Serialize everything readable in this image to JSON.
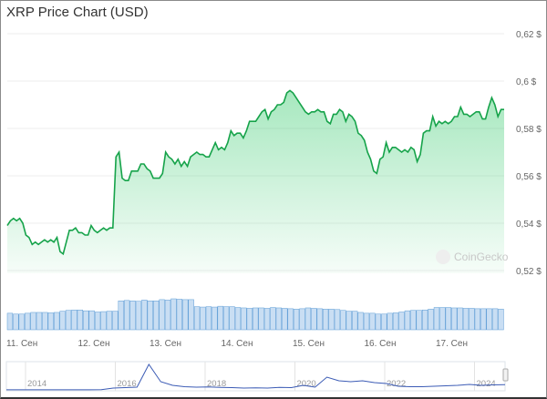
{
  "chart_data": {
    "type": "line",
    "title": "XRP Price Chart (USD)",
    "xlabel": "",
    "ylabel": "",
    "ylim": [
      0.515,
      0.625
    ],
    "y_ticks": [
      "0,62 $",
      "0,6 $",
      "0,58 $",
      "0,56 $",
      "0,54 $",
      "0,52 $"
    ],
    "y_tick_values": [
      0.62,
      0.6,
      0.58,
      0.56,
      0.54,
      0.52
    ],
    "x_ticks": [
      "11. Сен",
      "12. Сен",
      "13. Сен",
      "14. Сен",
      "15. Сен",
      "16. Сен",
      "17. Сен"
    ],
    "grid": true,
    "line_color": "#16a34a",
    "fill_color": "#22c55e",
    "watermark": "CoinGecko",
    "price": [
      0.539,
      0.541,
      0.542,
      0.541,
      0.542,
      0.54,
      0.535,
      0.534,
      0.531,
      0.532,
      0.531,
      0.532,
      0.533,
      0.532,
      0.533,
      0.532,
      0.534,
      0.528,
      0.527,
      0.532,
      0.537,
      0.537,
      0.538,
      0.536,
      0.536,
      0.535,
      0.535,
      0.539,
      0.537,
      0.536,
      0.537,
      0.538,
      0.537,
      0.538,
      0.538,
      0.568,
      0.57,
      0.559,
      0.558,
      0.558,
      0.562,
      0.562,
      0.562,
      0.565,
      0.565,
      0.563,
      0.562,
      0.559,
      0.559,
      0.559,
      0.561,
      0.57,
      0.568,
      0.567,
      0.565,
      0.567,
      0.564,
      0.566,
      0.564,
      0.568,
      0.569,
      0.57,
      0.569,
      0.569,
      0.568,
      0.568,
      0.571,
      0.574,
      0.571,
      0.572,
      0.571,
      0.574,
      0.579,
      0.577,
      0.578,
      0.578,
      0.576,
      0.579,
      0.583,
      0.583,
      0.583,
      0.585,
      0.587,
      0.588,
      0.584,
      0.587,
      0.588,
      0.59,
      0.59,
      0.591,
      0.595,
      0.596,
      0.595,
      0.593,
      0.591,
      0.589,
      0.587,
      0.586,
      0.587,
      0.587,
      0.588,
      0.587,
      0.587,
      0.583,
      0.582,
      0.586,
      0.586,
      0.588,
      0.587,
      0.583,
      0.586,
      0.585,
      0.583,
      0.578,
      0.577,
      0.575,
      0.57,
      0.567,
      0.562,
      0.561,
      0.567,
      0.568,
      0.574,
      0.57,
      0.572,
      0.572,
      0.571,
      0.57,
      0.571,
      0.57,
      0.572,
      0.571,
      0.566,
      0.569,
      0.578,
      0.579,
      0.579,
      0.585,
      0.581,
      0.583,
      0.582,
      0.583,
      0.582,
      0.583,
      0.585,
      0.585,
      0.589,
      0.586,
      0.586,
      0.585,
      0.586,
      0.587,
      0.587,
      0.584,
      0.584,
      0.589,
      0.593,
      0.59,
      0.585,
      0.588,
      0.588
    ],
    "volume_color": "#5b9bd5",
    "volume_relative": [
      40,
      38,
      38,
      40,
      42,
      42,
      42,
      41,
      42,
      45,
      47,
      48,
      48,
      46,
      46,
      43,
      44,
      45,
      45,
      70,
      71,
      70,
      69,
      72,
      70,
      70,
      73,
      72,
      75,
      74,
      73,
      73,
      56,
      55,
      56,
      55,
      57,
      56,
      56,
      54,
      53,
      52,
      53,
      53,
      52,
      54,
      53,
      52,
      51,
      50,
      51,
      53,
      52,
      51,
      50,
      50,
      49,
      47,
      45,
      45,
      42,
      40,
      40,
      38,
      38,
      40,
      41,
      43,
      46,
      47,
      47,
      48,
      50,
      54,
      54,
      54,
      53,
      53,
      52,
      52,
      51,
      51,
      51,
      51,
      50
    ],
    "navigator": {
      "x_ticks": [
        "2014",
        "2016",
        "2018",
        "2020",
        "2022",
        "2024"
      ],
      "line_color": "#3b5bb5",
      "values": [
        0.006,
        0.006,
        0.006,
        0.006,
        0.006,
        0.006,
        0.007,
        0.008,
        0.03,
        0.2,
        0.25,
        0.3,
        2.8,
        0.9,
        0.5,
        0.35,
        0.3,
        0.32,
        0.28,
        0.25,
        0.2,
        0.22,
        0.2,
        0.28,
        0.25,
        0.5,
        0.3,
        1.4,
        1.0,
        0.9,
        1.0,
        0.8,
        0.7,
        0.4,
        0.35,
        0.35,
        0.4,
        0.45,
        0.5,
        0.6,
        0.5,
        0.55,
        0.58
      ]
    }
  }
}
